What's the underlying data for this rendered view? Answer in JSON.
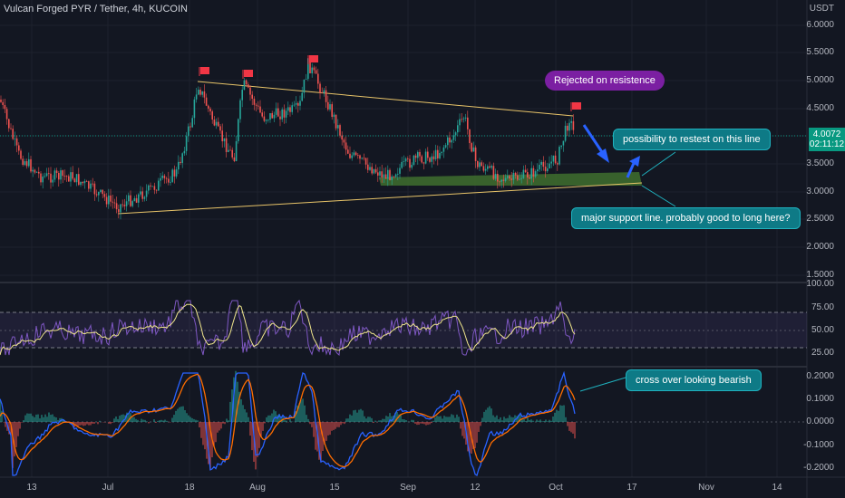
{
  "header": {
    "title": "Vulcan Forged PYR / Tether, 4h, KUCOIN"
  },
  "price_axis": {
    "unit": "USDT",
    "ticks": [
      "6.0000",
      "5.5000",
      "5.0000",
      "4.5000",
      "3.5000",
      "3.0000",
      "2.5000",
      "2.0000",
      "1.5000"
    ],
    "current_price": "4.0072",
    "countdown": "02:11:12"
  },
  "rsi_axis": {
    "ticks": [
      "100.00",
      "75.00",
      "50.00",
      "25.00"
    ]
  },
  "macd_axis": {
    "ticks": [
      "0.2000",
      "0.1000",
      "0.0000",
      "-0.1000",
      "-0.2000"
    ]
  },
  "time_axis": {
    "ticks": [
      "13",
      "Jul",
      "18",
      "Aug",
      "15",
      "Sep",
      "12",
      "Oct",
      "17",
      "Nov",
      "14"
    ]
  },
  "annotations": {
    "rejected": "Rejected on resistence",
    "retest": "possibility to restest on this line",
    "support": "major support line. probably good to long here?",
    "crossover": "cross over looking bearish"
  },
  "colors": {
    "background": "#131722",
    "up": "#26a69a",
    "down": "#ef5350",
    "trendline": "#e8c469",
    "support_zone": "#3f6e2e",
    "rsi_line": "#7e57c2",
    "rsi_ma": "#f0e68c",
    "macd_line": "#2962ff",
    "signal_line": "#ff6d00",
    "callout_teal": "#0e7a86",
    "callout_purple": "#7b1fa2",
    "flag": "#f23645",
    "arrow": "#2962ff"
  }
}
